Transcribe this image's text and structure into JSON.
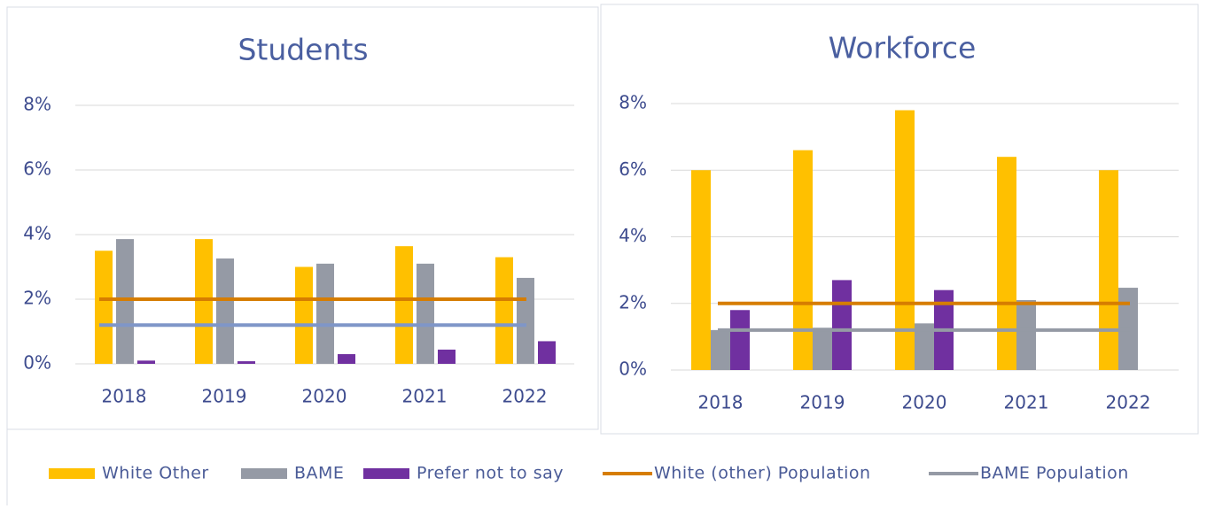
{
  "chart_data": [
    {
      "type": "bar",
      "title": "Students",
      "categories": [
        "2018",
        "2019",
        "2020",
        "2021",
        "2022"
      ],
      "series": [
        {
          "name": "White Other",
          "color": "#ffc000",
          "values": [
            3.5,
            3.86,
            3.0,
            3.64,
            3.3
          ]
        },
        {
          "name": "BAME",
          "color": "#959aa5",
          "values": [
            3.86,
            3.26,
            3.1,
            3.1,
            2.66
          ]
        },
        {
          "name": "Prefer not to say",
          "color": "#7030a0",
          "values": [
            0.1,
            0.08,
            0.3,
            0.44,
            0.7
          ]
        },
        {
          "name": "White (other) Population",
          "type": "line",
          "color": "#d67d00",
          "values": [
            2,
            2,
            2,
            2,
            2
          ]
        },
        {
          "name": "BAME Population",
          "type": "line",
          "color": "#7f96c8",
          "values": [
            1.2,
            1.2,
            1.2,
            1.2,
            1.2
          ]
        }
      ],
      "ylim": [
        0,
        8
      ],
      "yticks": [
        {
          "value": 0,
          "label": "0%"
        },
        {
          "value": 2,
          "label": "2%"
        },
        {
          "value": 4,
          "label": "4%"
        },
        {
          "value": 6,
          "label": "6%"
        },
        {
          "value": 8,
          "label": "8%"
        }
      ],
      "grid": true
    },
    {
      "type": "bar",
      "title": "Workforce",
      "categories": [
        "2018",
        "2019",
        "2020",
        "2021",
        "2022"
      ],
      "series": [
        {
          "name": "White Other",
          "color": "#ffc000",
          "values": [
            6.0,
            6.6,
            7.8,
            6.4,
            6.0
          ]
        },
        {
          "name": "BAME",
          "color": "#959aa5",
          "values": [
            1.2,
            1.27,
            1.4,
            2.1,
            2.47
          ]
        },
        {
          "name": "Prefer not to say",
          "color": "#7030a0",
          "values": [
            1.8,
            2.7,
            2.4,
            0,
            0
          ]
        },
        {
          "name": "White (other) Population",
          "type": "line",
          "color": "#d67d00",
          "values": [
            2,
            2,
            2,
            2,
            2
          ]
        },
        {
          "name": "BAME Population",
          "type": "line",
          "color": "#959aa5",
          "values": [
            1.2,
            1.2,
            1.2,
            1.2,
            1.2
          ]
        }
      ],
      "ylim": [
        0,
        8
      ],
      "yticks": [
        {
          "value": 0,
          "label": "0%"
        },
        {
          "value": 2,
          "label": "2%"
        },
        {
          "value": 4,
          "label": "4%"
        },
        {
          "value": 6,
          "label": "6%"
        },
        {
          "value": 8,
          "label": "8%"
        }
      ],
      "grid": true
    }
  ]
}
